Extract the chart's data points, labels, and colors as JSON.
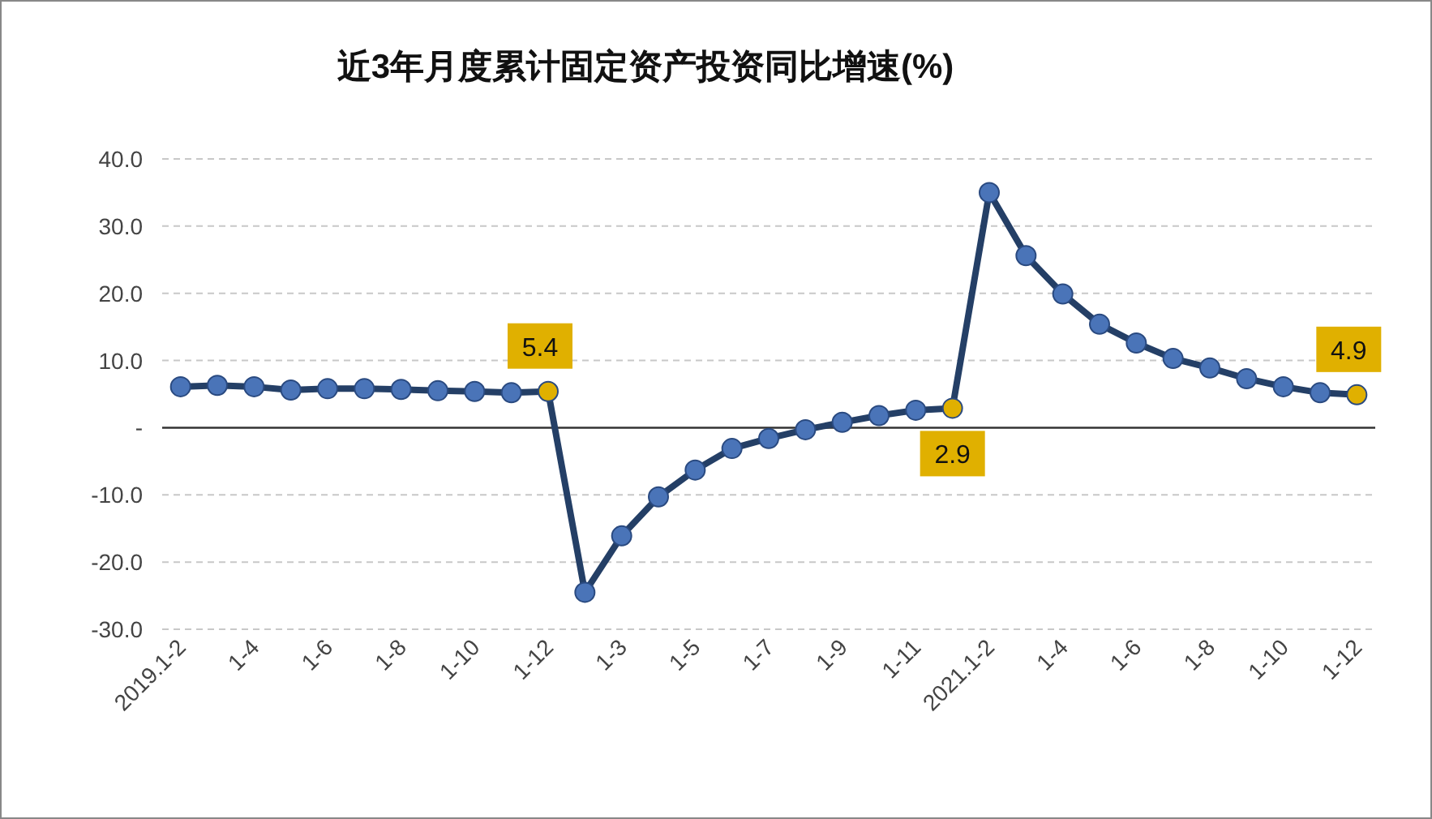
{
  "chart_data": {
    "type": "line",
    "title": "近3年月度累计固定资产投资同比增速(%)",
    "categories": [
      "2019.1-2",
      null,
      "1-4",
      null,
      "1-6",
      null,
      "1-8",
      null,
      "1-10",
      null,
      "1-12",
      null,
      "1-3",
      null,
      "1-5",
      null,
      "1-7",
      null,
      "1-9",
      null,
      "1-11",
      null,
      "2021.1-2",
      null,
      "1-4",
      null,
      "1-6",
      null,
      "1-8",
      null,
      "1-10",
      null,
      "1-12"
    ],
    "series": [
      {
        "color": "#243f66",
        "values": [
          6.1,
          6.3,
          6.1,
          5.6,
          5.8,
          5.8,
          5.7,
          5.5,
          5.4,
          5.2,
          5.4,
          -24.5,
          -16.1,
          -10.3,
          -6.3,
          -3.1,
          -1.6,
          -0.3,
          0.8,
          1.8,
          2.6,
          2.9,
          35.0,
          25.6,
          19.9,
          15.4,
          12.6,
          10.3,
          8.9,
          7.3,
          6.1,
          5.2,
          4.9
        ],
        "colors": [
          "#4a74b8",
          "#4a74b8",
          "#4a74b8",
          "#4a74b8",
          "#4a74b8",
          "#4a74b8",
          "#4a74b8",
          "#4a74b8",
          "#4a74b8",
          "#4a74b8",
          "#e0b000",
          "#4a74b8",
          "#4a74b8",
          "#4a74b8",
          "#4a74b8",
          "#4a74b8",
          "#4a74b8",
          "#4a74b8",
          "#4a74b8",
          "#4a74b8",
          "#4a74b8",
          "#e0b000",
          "#4a74b8",
          "#4a74b8",
          "#4a74b8",
          "#4a74b8",
          "#4a74b8",
          "#4a74b8",
          "#4a74b8",
          "#4a74b8",
          "#4a74b8",
          "#4a74b8",
          "#e0b000"
        ],
        "value_labels": [
          null,
          null,
          null,
          null,
          null,
          null,
          null,
          null,
          null,
          null,
          "5.4",
          null,
          null,
          null,
          null,
          null,
          null,
          null,
          null,
          null,
          null,
          "2.9",
          null,
          null,
          null,
          null,
          null,
          null,
          null,
          null,
          null,
          null,
          "4.9"
        ]
      }
    ],
    "ylim": [
      -30,
      40
    ],
    "yticks": [
      {
        "value": 40,
        "label": "40.0"
      },
      {
        "value": 30,
        "label": "30.0"
      },
      {
        "value": 20,
        "label": "20.0"
      },
      {
        "value": 10,
        "label": "10.0"
      },
      {
        "value": 0,
        "label": "-"
      },
      {
        "value": -10,
        "label": "-10.0"
      },
      {
        "value": -20,
        "label": "-20.0"
      },
      {
        "value": -30,
        "label": "-30.0"
      }
    ],
    "grid": "y",
    "marker": "circle"
  }
}
